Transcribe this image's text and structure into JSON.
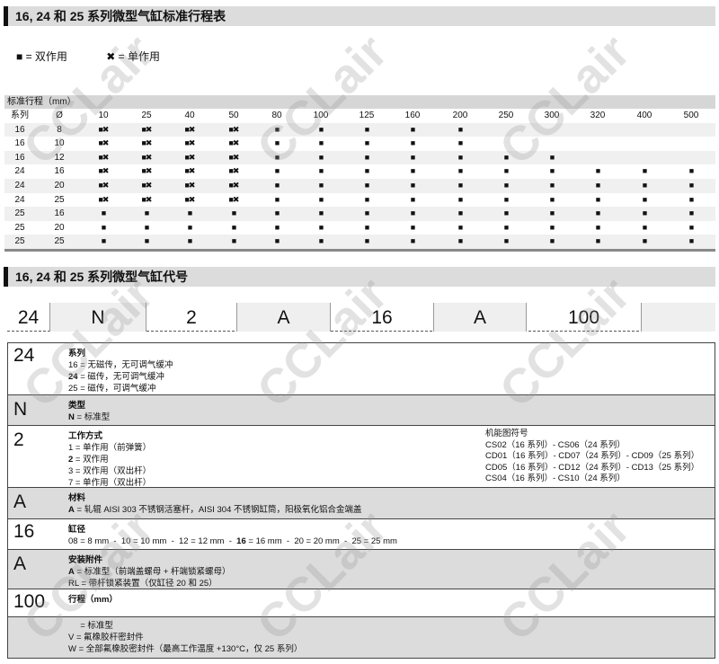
{
  "section1": {
    "title": "16, 24 和 25 系列微型气缸标准行程表"
  },
  "legend": {
    "double": "■ = 双作用",
    "single": "✖ = 单作用"
  },
  "stroke_table": {
    "caption": "标准行程（mm）",
    "headers": [
      "系列",
      "Ø",
      "10",
      "25",
      "40",
      "50",
      "80",
      "100",
      "125",
      "160",
      "200",
      "250",
      "300",
      "320",
      "400",
      "500"
    ],
    "symbols": {
      "dx": "■✖",
      "d": "■",
      "": ""
    },
    "rows": [
      {
        "series": "16",
        "bore": "8",
        "marks": [
          "dx",
          "dx",
          "dx",
          "dx",
          "d",
          "d",
          "d",
          "d",
          "d",
          "",
          "",
          "",
          "",
          ""
        ]
      },
      {
        "series": "16",
        "bore": "10",
        "marks": [
          "dx",
          "dx",
          "dx",
          "dx",
          "d",
          "d",
          "d",
          "d",
          "d",
          "",
          "",
          "",
          "",
          ""
        ]
      },
      {
        "series": "16",
        "bore": "12",
        "marks": [
          "dx",
          "dx",
          "dx",
          "dx",
          "d",
          "d",
          "d",
          "d",
          "d",
          "d",
          "d",
          "",
          "",
          ""
        ]
      },
      {
        "series": "24",
        "bore": "16",
        "marks": [
          "dx",
          "dx",
          "dx",
          "dx",
          "d",
          "d",
          "d",
          "d",
          "d",
          "d",
          "d",
          "d",
          "d",
          "d"
        ]
      },
      {
        "series": "24",
        "bore": "20",
        "marks": [
          "dx",
          "dx",
          "dx",
          "dx",
          "d",
          "d",
          "d",
          "d",
          "d",
          "d",
          "d",
          "d",
          "d",
          "d"
        ]
      },
      {
        "series": "24",
        "bore": "25",
        "marks": [
          "dx",
          "dx",
          "dx",
          "dx",
          "d",
          "d",
          "d",
          "d",
          "d",
          "d",
          "d",
          "d",
          "d",
          "d"
        ]
      },
      {
        "series": "25",
        "bore": "16",
        "marks": [
          "d",
          "d",
          "d",
          "d",
          "d",
          "d",
          "d",
          "d",
          "d",
          "d",
          "d",
          "d",
          "d",
          "d"
        ]
      },
      {
        "series": "25",
        "bore": "20",
        "marks": [
          "d",
          "d",
          "d",
          "d",
          "d",
          "d",
          "d",
          "d",
          "d",
          "d",
          "d",
          "d",
          "d",
          "d"
        ]
      },
      {
        "series": "25",
        "bore": "25",
        "marks": [
          "d",
          "d",
          "d",
          "d",
          "d",
          "d",
          "d",
          "d",
          "d",
          "d",
          "d",
          "d",
          "d",
          "d"
        ]
      }
    ]
  },
  "section2": {
    "title": "16, 24 和 25 系列微型气缸代号"
  },
  "code": [
    "24",
    "N",
    "2",
    "A",
    "16",
    "A",
    "100",
    ""
  ],
  "details": [
    {
      "code": "24",
      "title": "系列",
      "lines": [
        "16 = 无磁传，无可调气缓冲",
        "<b>24</b> = 磁传，无可调气缓冲",
        "25 = 磁传，可调气缓冲"
      ]
    },
    {
      "code": "N",
      "title": "类型",
      "lines": [
        "<b>N</b> = 标准型"
      ]
    },
    {
      "code": "2",
      "title": "工作方式",
      "lines": [
        "1 = 单作用（前弹簧）",
        "<b>2</b> = 双作用",
        "3 = 双作用（双出杆）",
        "7 = 单作用（双出杆）"
      ],
      "right": [
        "机能图符号",
        "CS02（16 系列）- CS06（24 系列）",
        "CD01（16 系列）- CD07（24 系列）- CD09（25 系列）",
        "CD05（16 系列）- CD12（24 系列）- CD13（25 系列）",
        "CS04（16 系列）- CS10（24 系列）"
      ]
    },
    {
      "code": "A",
      "title": "材料",
      "lines": [
        "<b>A</b> = 轧辊 AISI 303 不锈钢活塞杆，AISI 304 不锈钢缸筒，阳极氧化铝合金端盖"
      ]
    },
    {
      "code": "16",
      "title": "缸径",
      "lines": [
        "08 = 8 mm &nbsp;- &nbsp;10 = 10 mm &nbsp;- &nbsp;12 = 12 mm &nbsp;- &nbsp;<b>16</b> = 16 mm &nbsp;- &nbsp;20 = 20 mm &nbsp;- &nbsp;25 = 25 mm"
      ]
    },
    {
      "code": "A",
      "title": "安装附件",
      "lines": [
        "<b>A</b> = 标准型（前端盖螺母 + 杆端锁紧螺母）",
        "RL = 带杆锁紧装置（仅缸径 20 和 25）"
      ]
    },
    {
      "code": "100",
      "title": "行程（mm）",
      "lines": []
    },
    {
      "code": "",
      "title": "",
      "lines": [
        "&nbsp;&nbsp;&nbsp;&nbsp; = 标准型",
        "V = 氟橡胶杆密封件",
        "W = 全部氟橡胶密封件（最高工作温度 +130°C，仅 25 系列）"
      ]
    }
  ],
  "watermark": "CCLair"
}
